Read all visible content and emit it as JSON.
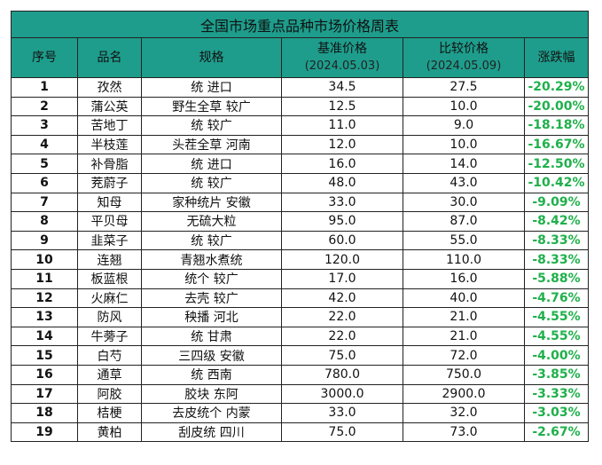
{
  "title": "全国市场重点品种市场价格周表",
  "headers": {
    "idx": "序号",
    "name": "品名",
    "spec": "规格",
    "base_price": "基准价格",
    "base_date": "(2024.05.03)",
    "compare_price": "比较价格",
    "compare_date": "(2024.05.09)",
    "change": "涨跌幅"
  },
  "colors": {
    "header_bg": "#1e9d8c",
    "change_text": "#1fb04b"
  },
  "rows": [
    {
      "idx": "1",
      "name": "孜然",
      "spec": "统 进口",
      "base": "34.5",
      "compare": "27.5",
      "change": "-20.29%"
    },
    {
      "idx": "2",
      "name": "蒲公英",
      "spec": "野生全草 较广",
      "base": "12.5",
      "compare": "10.0",
      "change": "-20.00%"
    },
    {
      "idx": "3",
      "name": "苦地丁",
      "spec": "统 较广",
      "base": "11.0",
      "compare": "9.0",
      "change": "-18.18%"
    },
    {
      "idx": "4",
      "name": "半枝莲",
      "spec": "头茬全草 河南",
      "base": "12.0",
      "compare": "10.0",
      "change": "-16.67%"
    },
    {
      "idx": "5",
      "name": "补骨脂",
      "spec": "统 进口",
      "base": "16.0",
      "compare": "14.0",
      "change": "-12.50%"
    },
    {
      "idx": "6",
      "name": "茺蔚子",
      "spec": "统 较广",
      "base": "48.0",
      "compare": "43.0",
      "change": "-10.42%"
    },
    {
      "idx": "7",
      "name": "知母",
      "spec": "家种统片 安徽",
      "base": "33.0",
      "compare": "30.0",
      "change": "-9.09%"
    },
    {
      "idx": "8",
      "name": "平贝母",
      "spec": "无硫大粒",
      "base": "95.0",
      "compare": "87.0",
      "change": "-8.42%"
    },
    {
      "idx": "9",
      "name": "韭菜子",
      "spec": "统 较广",
      "base": "60.0",
      "compare": "55.0",
      "change": "-8.33%"
    },
    {
      "idx": "10",
      "name": "连翘",
      "spec": "青翘水煮统",
      "base": "120.0",
      "compare": "110.0",
      "change": "-8.33%"
    },
    {
      "idx": "11",
      "name": "板蓝根",
      "spec": "统个 较广",
      "base": "17.0",
      "compare": "16.0",
      "change": "-5.88%"
    },
    {
      "idx": "12",
      "name": "火麻仁",
      "spec": "去壳 较广",
      "base": "42.0",
      "compare": "40.0",
      "change": "-4.76%"
    },
    {
      "idx": "13",
      "name": "防风",
      "spec": "秧播 河北",
      "base": "22.0",
      "compare": "21.0",
      "change": "-4.55%"
    },
    {
      "idx": "14",
      "name": "牛蒡子",
      "spec": "统 甘肃",
      "base": "22.0",
      "compare": "21.0",
      "change": "-4.55%"
    },
    {
      "idx": "15",
      "name": "白芍",
      "spec": "三四级 安徽",
      "base": "75.0",
      "compare": "72.0",
      "change": "-4.00%"
    },
    {
      "idx": "16",
      "name": "通草",
      "spec": "统 西南",
      "base": "780.0",
      "compare": "750.0",
      "change": "-3.85%"
    },
    {
      "idx": "17",
      "name": "阿胶",
      "spec": "胶块 东阿",
      "base": "3000.0",
      "compare": "2900.0",
      "change": "-3.33%"
    },
    {
      "idx": "18",
      "name": "桔梗",
      "spec": "去皮统个 内蒙",
      "base": "33.0",
      "compare": "32.0",
      "change": "-3.03%"
    },
    {
      "idx": "19",
      "name": "黄柏",
      "spec": "刮皮统 四川",
      "base": "75.0",
      "compare": "73.0",
      "change": "-2.67%"
    }
  ]
}
